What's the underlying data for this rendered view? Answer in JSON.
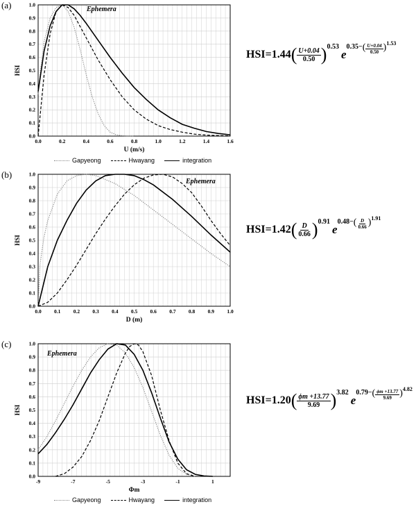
{
  "legend": {
    "gapyeong": "Gapyeong",
    "hwayang": "Hwayang",
    "integration": "integration"
  },
  "colors": {
    "gapyeong": "#8a8a8a",
    "hwayang": "#000000",
    "integration": "#000000",
    "grid": "#cfcfcf"
  },
  "panels": [
    {
      "label": "(a)",
      "annotation": "Ephemera",
      "formula": {
        "prefix": "HSI=1.44",
        "num": "U+0.04",
        "den": "0.50",
        "exp": "0.53",
        "e_const": "0.35−",
        "e_num": "U+0.04",
        "e_den": "0.50",
        "e_exp": "1.53"
      }
    },
    {
      "label": "(b)",
      "annotation": "Ephemera",
      "formula": {
        "prefix": "HSI=1.42",
        "num": "D",
        "den": "0.66",
        "exp": "0.91",
        "e_const": "0.48−",
        "e_num": "D",
        "e_den": "0.66",
        "e_exp": "1.91"
      }
    },
    {
      "label": "(c)",
      "annotation": "Ephemera",
      "formula": {
        "prefix": "HSI=1.20",
        "num": "ϕm +13.77",
        "den": "9.69",
        "exp": "3.82",
        "e_const": "0.79−",
        "e_num": "ϕm +13.77",
        "e_den": "9.69",
        "e_exp": "4.82"
      }
    }
  ],
  "chart_data": [
    {
      "type": "line",
      "ylabel": "HSI",
      "xlabel": "U (m/s)",
      "xlim": [
        0,
        1.6
      ],
      "ylim": [
        0,
        1.0
      ],
      "xticks": [
        "0.0",
        "0.2",
        "0.4",
        "0.6",
        "0.8",
        "1.0",
        "1.2",
        "1.4",
        "1.6"
      ],
      "yticks": [
        "0.0",
        "0.1",
        "0.2",
        "0.3",
        "0.4",
        "0.5",
        "0.6",
        "0.7",
        "0.8",
        "0.9",
        "1.0"
      ],
      "grid": true,
      "series": [
        {
          "name": "Gapyeong",
          "style": "dotted",
          "x": [
            0,
            0.02,
            0.05,
            0.1,
            0.15,
            0.2,
            0.25,
            0.3,
            0.35,
            0.4,
            0.45,
            0.5,
            0.55,
            0.6,
            0.65,
            0.7,
            0.75,
            0.8
          ],
          "y": [
            0.32,
            0.5,
            0.72,
            0.9,
            0.98,
            1.0,
            0.95,
            0.83,
            0.66,
            0.47,
            0.3,
            0.17,
            0.08,
            0.03,
            0.01,
            0.003,
            0.0,
            0.0
          ]
        },
        {
          "name": "Hwayang",
          "style": "dashed",
          "x": [
            0,
            0.05,
            0.1,
            0.15,
            0.2,
            0.25,
            0.3,
            0.4,
            0.5,
            0.6,
            0.7,
            0.8,
            0.9,
            1.0,
            1.1,
            1.2,
            1.3,
            1.4,
            1.5,
            1.6
          ],
          "y": [
            0.0,
            0.47,
            0.78,
            0.95,
            1.0,
            0.98,
            0.92,
            0.75,
            0.58,
            0.43,
            0.3,
            0.2,
            0.13,
            0.08,
            0.05,
            0.03,
            0.015,
            0.008,
            0.004,
            0.002
          ]
        },
        {
          "name": "integration",
          "style": "solid",
          "x": [
            0,
            0.05,
            0.1,
            0.15,
            0.2,
            0.25,
            0.3,
            0.35,
            0.4,
            0.5,
            0.6,
            0.7,
            0.8,
            0.9,
            1.0,
            1.1,
            1.2,
            1.3,
            1.4,
            1.5,
            1.6
          ],
          "y": [
            0.34,
            0.65,
            0.84,
            0.95,
            1.0,
            1.0,
            0.97,
            0.92,
            0.86,
            0.73,
            0.6,
            0.48,
            0.37,
            0.28,
            0.2,
            0.14,
            0.09,
            0.06,
            0.035,
            0.02,
            0.01
          ]
        }
      ]
    },
    {
      "type": "line",
      "ylabel": "HSI",
      "xlabel": "D (m)",
      "xlim": [
        0,
        1.0
      ],
      "ylim": [
        0,
        1.0
      ],
      "xticks": [
        "0.0",
        "0.1",
        "0.2",
        "0.3",
        "0.4",
        "0.5",
        "0.6",
        "0.7",
        "0.8",
        "0.9",
        "1.0"
      ],
      "yticks": [
        "0.0",
        "0.1",
        "0.2",
        "0.3",
        "0.4",
        "0.5",
        "0.6",
        "0.7",
        "0.8",
        "0.9",
        "1.0"
      ],
      "grid": true,
      "series": [
        {
          "name": "Gapyeong",
          "style": "dotted",
          "x": [
            0,
            0.01,
            0.03,
            0.05,
            0.1,
            0.15,
            0.2,
            0.25,
            0.3,
            0.4,
            0.5,
            0.6,
            0.7,
            0.8,
            0.9,
            1.0
          ],
          "y": [
            0.0,
            0.32,
            0.52,
            0.65,
            0.85,
            0.95,
            0.99,
            1.0,
            0.99,
            0.93,
            0.84,
            0.73,
            0.62,
            0.51,
            0.4,
            0.3
          ]
        },
        {
          "name": "Hwayang",
          "style": "dashed",
          "x": [
            0,
            0.05,
            0.1,
            0.15,
            0.2,
            0.25,
            0.3,
            0.35,
            0.4,
            0.45,
            0.5,
            0.55,
            0.6,
            0.65,
            0.7,
            0.75,
            0.8,
            0.85,
            0.9,
            0.95,
            1.0
          ],
          "y": [
            0.0,
            0.03,
            0.1,
            0.2,
            0.31,
            0.43,
            0.55,
            0.66,
            0.76,
            0.85,
            0.92,
            0.97,
            0.995,
            1.0,
            0.98,
            0.93,
            0.86,
            0.76,
            0.65,
            0.55,
            0.46
          ]
        },
        {
          "name": "integration",
          "style": "solid",
          "x": [
            0,
            0.05,
            0.1,
            0.15,
            0.2,
            0.25,
            0.3,
            0.35,
            0.4,
            0.45,
            0.5,
            0.55,
            0.6,
            0.7,
            0.8,
            0.9,
            1.0
          ],
          "y": [
            0.0,
            0.3,
            0.5,
            0.65,
            0.78,
            0.88,
            0.95,
            0.99,
            1.0,
            1.0,
            0.99,
            0.96,
            0.92,
            0.81,
            0.68,
            0.54,
            0.41
          ]
        }
      ]
    },
    {
      "type": "line",
      "ylabel": "HSI",
      "xlabel": "Φm",
      "xlim": [
        -9,
        2
      ],
      "ylim": [
        0,
        1.0
      ],
      "xticks": [
        "-9",
        "-7",
        "-5",
        "-3",
        "-1",
        "1"
      ],
      "xtick_values": [
        -9,
        -7,
        -5,
        -3,
        -1,
        1
      ],
      "yticks": [
        "0.0",
        "0.1",
        "0.2",
        "0.3",
        "0.4",
        "0.5",
        "0.6",
        "0.7",
        "0.8",
        "0.9",
        "1.0"
      ],
      "grid": true,
      "series": [
        {
          "name": "Gapyeong",
          "style": "dotted",
          "x": [
            -9,
            -8.5,
            -8,
            -7.5,
            -7,
            -6.5,
            -6,
            -5.5,
            -5,
            -4.5,
            -4,
            -3.5,
            -3,
            -2.5,
            -2,
            -1.5,
            -1,
            -0.5,
            0
          ],
          "y": [
            0.2,
            0.3,
            0.42,
            0.55,
            0.68,
            0.8,
            0.9,
            0.97,
            1.0,
            0.99,
            0.93,
            0.82,
            0.67,
            0.49,
            0.31,
            0.16,
            0.06,
            0.015,
            0.0
          ]
        },
        {
          "name": "Hwayang",
          "style": "dashed",
          "x": [
            -8,
            -7.5,
            -7,
            -6.5,
            -6,
            -5.5,
            -5,
            -4.5,
            -4,
            -3.75,
            -3.5,
            -3.25,
            -3,
            -2.5,
            -2,
            -1.5,
            -1,
            -0.5,
            0
          ],
          "y": [
            0.0,
            0.02,
            0.07,
            0.15,
            0.27,
            0.42,
            0.6,
            0.78,
            0.93,
            0.98,
            1.0,
            0.99,
            0.94,
            0.76,
            0.5,
            0.27,
            0.1,
            0.02,
            0.0
          ]
        },
        {
          "name": "integration",
          "style": "solid",
          "x": [
            -9,
            -8.5,
            -8,
            -7.5,
            -7,
            -6.5,
            -6,
            -5.5,
            -5,
            -4.5,
            -4,
            -3.5,
            -3,
            -2.5,
            -2,
            -1.5,
            -1,
            -0.5,
            0,
            0.5,
            1
          ],
          "y": [
            0.17,
            0.24,
            0.33,
            0.43,
            0.54,
            0.66,
            0.78,
            0.88,
            0.96,
            1.0,
            0.99,
            0.92,
            0.8,
            0.63,
            0.44,
            0.26,
            0.13,
            0.05,
            0.015,
            0.003,
            0.0
          ]
        }
      ]
    }
  ]
}
